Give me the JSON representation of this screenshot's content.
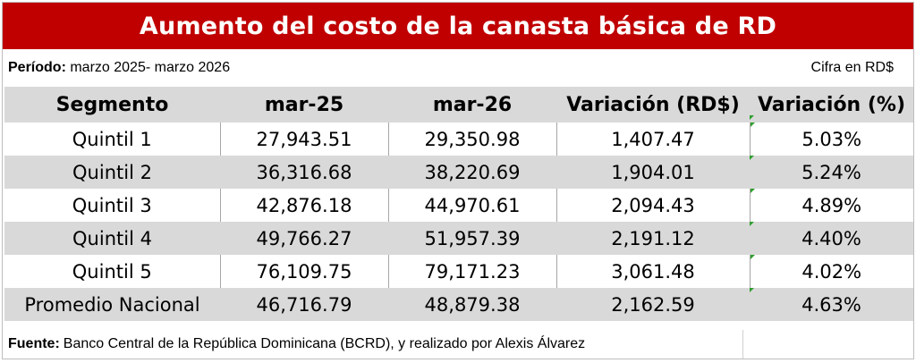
{
  "title": "Aumento del costo de la canasta básica de RD",
  "period_label": "Período:",
  "period_value": "marzo 2025- marzo 2026",
  "unit_note": "Cifra en RD$",
  "headers": [
    "Segmento",
    "mar-25",
    "mar-26",
    "Variación (RD$)",
    "Variación (%)"
  ],
  "rows": [
    [
      "Quintil 1",
      "27,943.51",
      "29,350.98",
      "1,407.47",
      "5.03%"
    ],
    [
      "Quintil 2",
      "36,316.68",
      "38,220.69",
      "1,904.01",
      "5.24%"
    ],
    [
      "Quintil 3",
      "42,876.18",
      "44,970.61",
      "2,094.43",
      "4.89%"
    ],
    [
      "Quintil 4",
      "49,766.27",
      "51,957.39",
      "2,191.12",
      "4.40%"
    ],
    [
      "Quintil 5",
      "76,109.75",
      "79,171.23",
      "3,061.48",
      "4.02%"
    ],
    [
      "Promedio Nacional",
      "46,716.79",
      "48,879.38",
      "2,162.59",
      "4.63%"
    ]
  ],
  "footer_label": "Fuente:",
  "footer_text": "Banco Central de la República Dominicana (BCRD), y realizado por Alexis Álvarez",
  "colors": {
    "title_bg": "#c00000",
    "band": "#d9d9d9",
    "marker": "#2e9e2e"
  }
}
